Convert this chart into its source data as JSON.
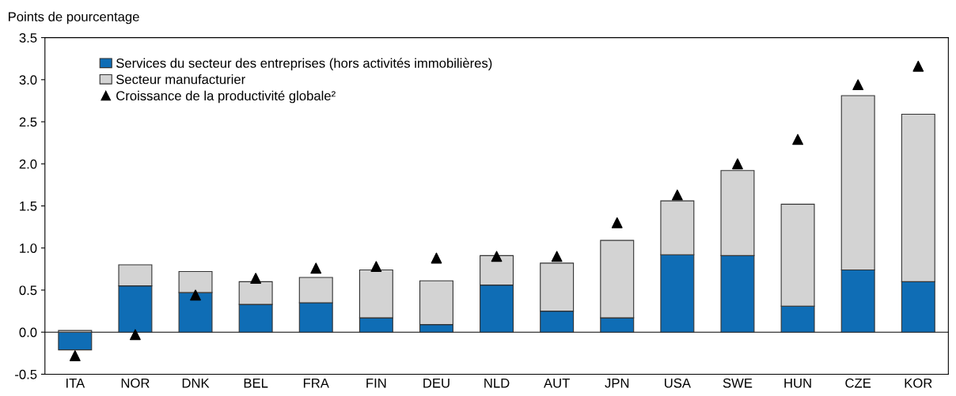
{
  "chart_data": {
    "type": "bar",
    "stacked": true,
    "ylabel": "Points de pourcentage",
    "categories": [
      "ITA",
      "NOR",
      "DNK",
      "BEL",
      "FRA",
      "FIN",
      "DEU",
      "NLD",
      "AUT",
      "JPN",
      "USA",
      "SWE",
      "HUN",
      "CZE",
      "KOR"
    ],
    "series": [
      {
        "name": "Services du secteur des entreprises (hors activités immobilières)",
        "color": "#0f6db5",
        "values": [
          -0.21,
          0.55,
          0.47,
          0.33,
          0.35,
          0.17,
          0.09,
          0.56,
          0.25,
          0.17,
          0.92,
          0.91,
          0.31,
          0.74,
          0.6
        ]
      },
      {
        "name": "Secteur manufacturier",
        "color": "#d3d3d3",
        "values": [
          0.02,
          0.25,
          0.25,
          0.27,
          0.3,
          0.57,
          0.52,
          0.35,
          0.57,
          0.92,
          0.64,
          1.01,
          1.21,
          2.07,
          1.99
        ]
      },
      {
        "name": "Croissance de la productivité globale²",
        "type": "scatter",
        "color": "#000000",
        "marker": "triangle",
        "values": [
          -0.28,
          -0.03,
          0.44,
          0.64,
          0.76,
          0.78,
          0.88,
          0.9,
          0.9,
          1.3,
          1.63,
          2.0,
          2.29,
          2.94,
          3.16
        ]
      }
    ],
    "ylim": [
      -0.5,
      3.5
    ],
    "yticks": [
      {
        "value": -0.5,
        "label": "-0.5"
      },
      {
        "value": 0,
        "label": "0.0"
      },
      {
        "value": 0.5,
        "label": "0.5"
      },
      {
        "value": 1,
        "label": "1.0"
      },
      {
        "value": 1.5,
        "label": "1.5"
      },
      {
        "value": 2,
        "label": "2.0"
      },
      {
        "value": 2.5,
        "label": "2.5"
      },
      {
        "value": 3,
        "label": "3.0"
      },
      {
        "value": 3.5,
        "label": "3.5"
      }
    ],
    "ref_lines": [
      {
        "axis": "y",
        "value": 0,
        "color": "#000000"
      }
    ],
    "legend": "top left"
  }
}
